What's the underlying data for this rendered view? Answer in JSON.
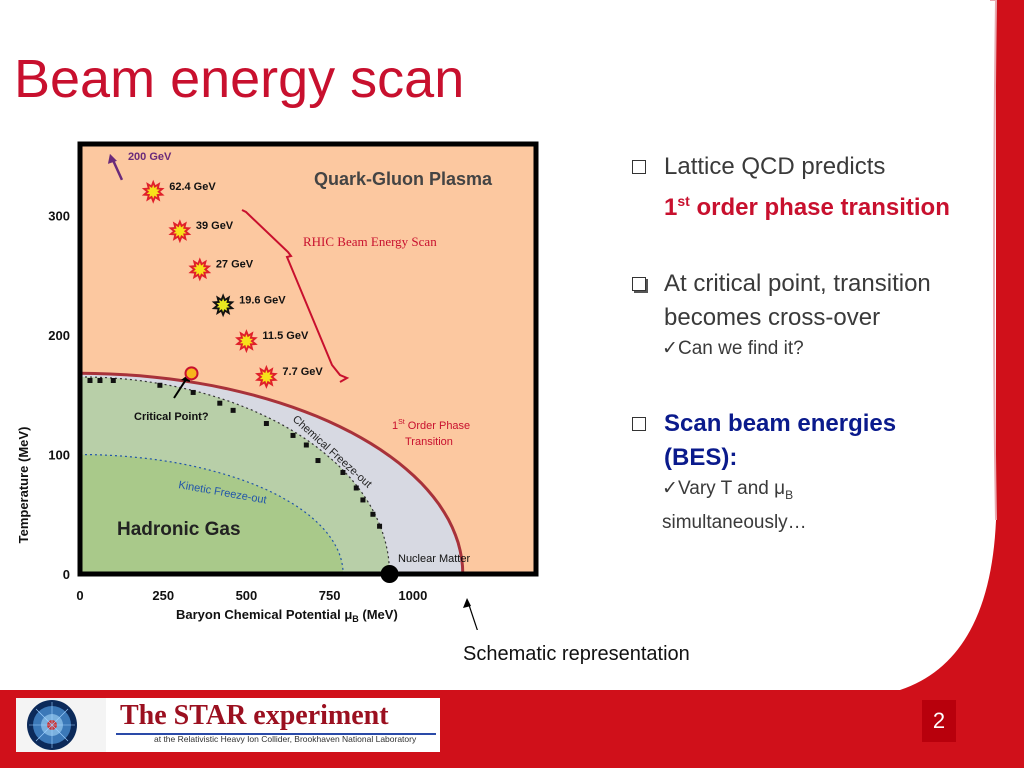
{
  "slide": {
    "title": "Beam energy scan",
    "page_number": "2",
    "caption": "Schematic representation"
  },
  "bullets": [
    {
      "text_plain": "Lattice QCD predicts",
      "highlight_pre": "1",
      "highlight_sup": "st",
      "highlight_post": " order phase transition"
    },
    {
      "text": "At critical point, transition becomes cross-over",
      "sub": "Can we find it?"
    },
    {
      "text": "Scan beam energies (BES):",
      "sub_pre": "Vary T and μ",
      "sub_subscript": "B",
      "sub_post": "simultaneously…"
    }
  ],
  "logo": {
    "title": "The STAR experiment",
    "subtitle": "at the Relativistic Heavy Ion Collider, Brookhaven National Laboratory"
  },
  "chart_data": {
    "type": "scatter",
    "xlabel_pre": "Baryon Chemical Potential μ",
    "xlabel_sub": "B",
    "xlabel_post": " (MeV)",
    "ylabel": "Temperature (MeV)",
    "x_ticks": [
      "0",
      "250",
      "500",
      "750",
      "1000"
    ],
    "y_ticks": [
      "0",
      "100",
      "200",
      "300"
    ],
    "xlim": [
      0,
      1370
    ],
    "ylim": [
      0,
      360
    ],
    "regions": {
      "qgp": "Quark-Gluon Plasma",
      "hadronic": "Hadronic Gas",
      "nuclear": "Nuclear Matter"
    },
    "labels": {
      "rhic_bes": "RHIC Beam Energy Scan",
      "chemical_freezeout": "Chemical Freeze-out",
      "kinetic_freezeout": "Kinetic Freeze-out",
      "critical_point": "Critical Point?",
      "first_order_pre": "1",
      "first_order_sup": "St",
      "first_order_post": " Order Phase",
      "first_order_line2": "Transition"
    },
    "beam_energies": [
      {
        "label": "200 GeV",
        "x": 120,
        "y": 345
      },
      {
        "label": "62.4 GeV",
        "x": 220,
        "y": 320
      },
      {
        "label": "39 GeV",
        "x": 300,
        "y": 287
      },
      {
        "label": "27 GeV",
        "x": 360,
        "y": 255
      },
      {
        "label": "19.6 GeV",
        "x": 430,
        "y": 225
      },
      {
        "label": "11.5 GeV",
        "x": 500,
        "y": 195
      },
      {
        "label": "7.7 GeV",
        "x": 560,
        "y": 165
      }
    ],
    "critical_point": {
      "x": 335,
      "y": 168
    },
    "freezeout_points": [
      {
        "x": 30,
        "y": 162
      },
      {
        "x": 60,
        "y": 162
      },
      {
        "x": 100,
        "y": 162
      },
      {
        "x": 240,
        "y": 158
      },
      {
        "x": 340,
        "y": 152
      },
      {
        "x": 420,
        "y": 143
      },
      {
        "x": 460,
        "y": 137
      },
      {
        "x": 560,
        "y": 126
      },
      {
        "x": 640,
        "y": 116
      },
      {
        "x": 680,
        "y": 108
      },
      {
        "x": 715,
        "y": 95
      },
      {
        "x": 790,
        "y": 85
      },
      {
        "x": 830,
        "y": 72
      },
      {
        "x": 850,
        "y": 62
      },
      {
        "x": 880,
        "y": 50
      },
      {
        "x": 900,
        "y": 40
      }
    ],
    "nuclear_matter_point": {
      "x": 930,
      "y": 0
    },
    "colors": {
      "qgp": "#fcc8a0",
      "hadronic": "#a9c98a",
      "hadronic_outer": "#b8cfa8",
      "freezeout_band": "#d7d9e2",
      "phase_line": "#a8323a",
      "red": "#c8102e",
      "navy": "#0a1a8c"
    }
  }
}
